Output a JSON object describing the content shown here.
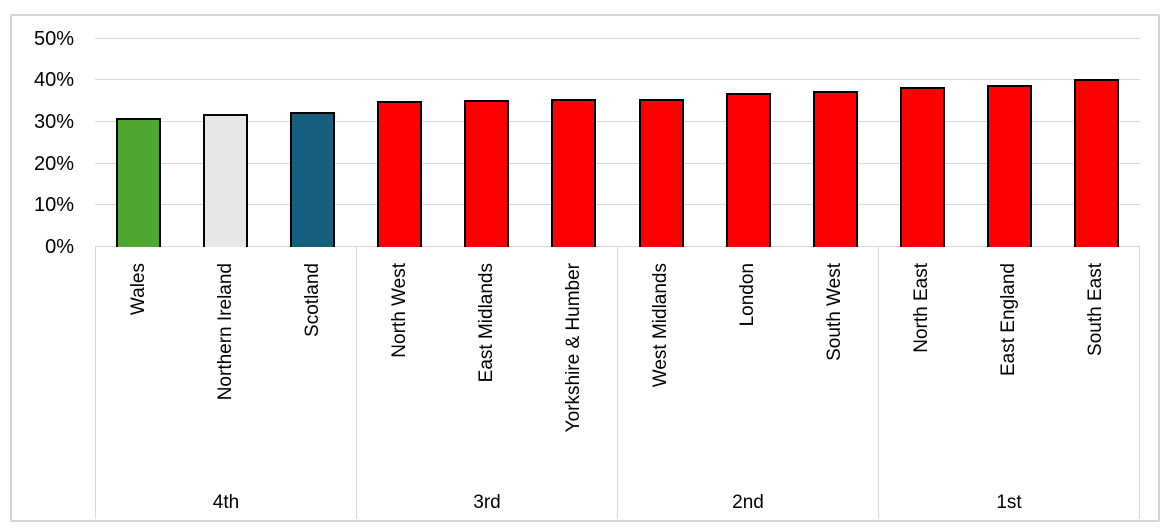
{
  "chart_data": {
    "type": "bar",
    "title": "",
    "xlabel": "",
    "ylabel": "",
    "ylim": [
      0,
      50
    ],
    "grid": true,
    "y_ticks": [
      {
        "value": 0,
        "label": "0%"
      },
      {
        "value": 10,
        "label": "10%"
      },
      {
        "value": 20,
        "label": "20%"
      },
      {
        "value": 30,
        "label": "30%"
      },
      {
        "value": 40,
        "label": "40%"
      },
      {
        "value": 50,
        "label": "50%"
      }
    ],
    "bar_outline_color": "#000000",
    "groups": [
      {
        "label": "4th",
        "bars": [
          {
            "label": "Wales",
            "value": 31.0,
            "color": "#4EA72E"
          },
          {
            "label": "Northern Ireland",
            "value": 32.0,
            "color": "#E7E7E7"
          },
          {
            "label": "Scotland",
            "value": 32.3,
            "color": "#16607E"
          }
        ]
      },
      {
        "label": "3rd",
        "bars": [
          {
            "label": "North West",
            "value": 35.1,
            "color": "#FF0000"
          },
          {
            "label": "East Midlands",
            "value": 35.2,
            "color": "#FF0000"
          },
          {
            "label": "Yorkshire & Humber",
            "value": 35.4,
            "color": "#FF0000"
          }
        ]
      },
      {
        "label": "2nd",
        "bars": [
          {
            "label": "West Midlands",
            "value": 35.4,
            "color": "#FF0000"
          },
          {
            "label": "London",
            "value": 36.9,
            "color": "#FF0000"
          },
          {
            "label": "South West",
            "value": 37.4,
            "color": "#FF0000"
          }
        ]
      },
      {
        "label": "1st",
        "bars": [
          {
            "label": "North East",
            "value": 38.5,
            "color": "#FF0000"
          },
          {
            "label": "East England",
            "value": 38.8,
            "color": "#FF0000"
          },
          {
            "label": "South East",
            "value": 40.2,
            "color": "#FF0000"
          }
        ]
      }
    ]
  }
}
